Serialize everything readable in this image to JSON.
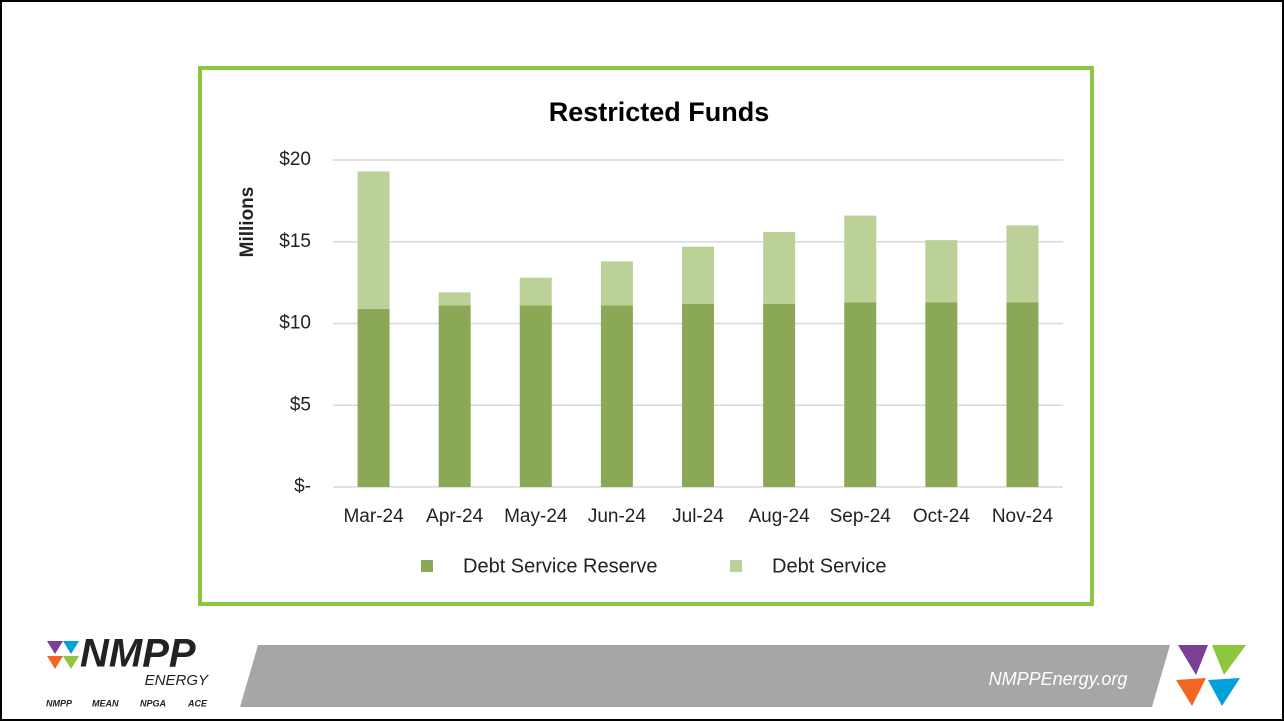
{
  "chart_data": {
    "type": "bar",
    "stacked": true,
    "title": "Restricted Funds",
    "y_label": "Millions",
    "categories": [
      "Mar-24",
      "Apr-24",
      "May-24",
      "Jun-24",
      "Jul-24",
      "Aug-24",
      "Sep-24",
      "Oct-24",
      "Nov-24"
    ],
    "series": [
      {
        "name": "Debt Service Reserve",
        "color": "#8aa856",
        "values": [
          10.9,
          11.1,
          11.1,
          11.1,
          11.2,
          11.2,
          11.3,
          11.3,
          11.3
        ]
      },
      {
        "name": "Debt Service",
        "color": "#bcd198",
        "values": [
          8.4,
          0.8,
          1.7,
          2.7,
          3.5,
          4.4,
          5.3,
          3.8,
          4.7
        ]
      }
    ],
    "ylim": [
      0,
      20
    ],
    "yticks": [
      {
        "value": 0,
        "label": "$-"
      },
      {
        "value": 5,
        "label": "$5"
      },
      {
        "value": 10,
        "label": "$10"
      },
      {
        "value": 15,
        "label": "$15"
      },
      {
        "value": 20,
        "label": "$20"
      }
    ],
    "grid": true,
    "legend": "bottom"
  },
  "footer": {
    "logo": "NMPP",
    "logo_sub": "ENERGY",
    "members": [
      "NMPP",
      "MEAN",
      "NPGA",
      "ACE"
    ],
    "website": "NMPPEnergy.org"
  }
}
